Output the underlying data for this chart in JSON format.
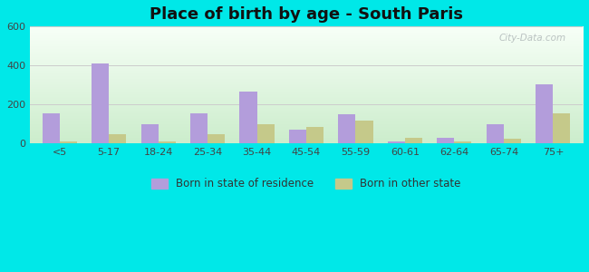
{
  "title": "Place of birth by age - South Paris",
  "categories": [
    "<5",
    "5-17",
    "18-24",
    "25-34",
    "35-44",
    "45-54",
    "55-59",
    "60-61",
    "62-64",
    "65-74",
    "75+"
  ],
  "born_in_state": [
    155,
    410,
    100,
    155,
    265,
    70,
    150,
    10,
    30,
    100,
    305
  ],
  "born_other_state": [
    10,
    45,
    10,
    45,
    100,
    85,
    115,
    30,
    10,
    25,
    155
  ],
  "bar_color_state": "#b39ddb",
  "bar_color_other": "#c5c98a",
  "ylim": [
    0,
    600
  ],
  "yticks": [
    0,
    200,
    400,
    600
  ],
  "legend_state": "Born in state of residence",
  "legend_other": "Born in other state",
  "outer_bg": "#00e8e8",
  "grid_color": "#cccccc",
  "title_fontsize": 13,
  "bar_width": 0.35
}
